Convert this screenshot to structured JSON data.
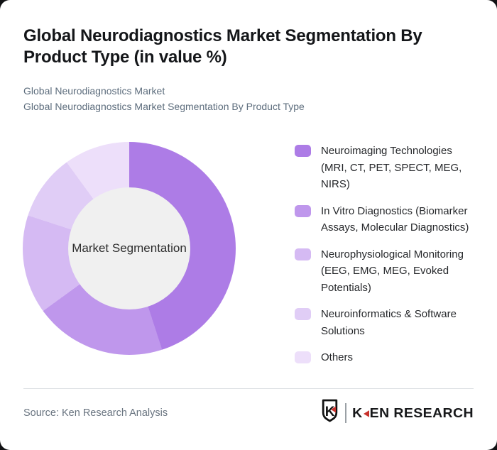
{
  "page": {
    "background_color": "#111214",
    "card_background": "#ffffff"
  },
  "header": {
    "title": "Global Neurodiagnostics Market Segmentation By Product Type (in value %)",
    "subtitle1": "Global Neurodiagnostics Market",
    "subtitle2": "Global Neurodiagnostics Market Segmentation By Product Type"
  },
  "chart_data": {
    "type": "pie",
    "donut": true,
    "title": "Global Neurodiagnostics Market Segmentation By Product Type (in value %)",
    "center_label": "Market Segmentation",
    "categories": [
      "Neuroimaging Technologies (MRI, CT, PET, SPECT, MEG, NIRS)",
      "In Vitro Diagnostics (Biomarker Assays, Molecular Diagnostics)",
      "Neurophysiological Monitoring (EEG, EMG, MEG, Evoked Potentials)",
      "Neuroinformatics & Software Solutions",
      "Others"
    ],
    "values": [
      45,
      20,
      15,
      10,
      10
    ],
    "unit": "value %",
    "colors": [
      "#ad7ce6",
      "#bf97ec",
      "#d5baf3",
      "#e0cdf6",
      "#eddffa"
    ],
    "hole_color": "#f0f0f0",
    "start_angle_deg": 0,
    "direction": "clockwise",
    "legend_position": "right",
    "data_labels": false
  },
  "legend": {
    "items": [
      {
        "label": "Neuroimaging Technologies\n(MRI, CT, PET, SPECT, MEG,\nNIRS)"
      },
      {
        "label": "In Vitro Diagnostics (Biomarker\nAssays, Molecular Diagnostics)"
      },
      {
        "label": "Neurophysiological Monitoring\n(EEG, EMG, MEG, Evoked\nPotentials)"
      },
      {
        "label": "Neuroinformatics & Software\nSolutions"
      },
      {
        "label": "Others"
      }
    ]
  },
  "footer": {
    "source": "Source: Ken Research Analysis",
    "logo": {
      "badge_letter": "K",
      "brand_first_letter": "K",
      "brand_rest": "EN RESEARCH",
      "accent_color": "#c8312b",
      "text_color": "#17181a"
    }
  }
}
